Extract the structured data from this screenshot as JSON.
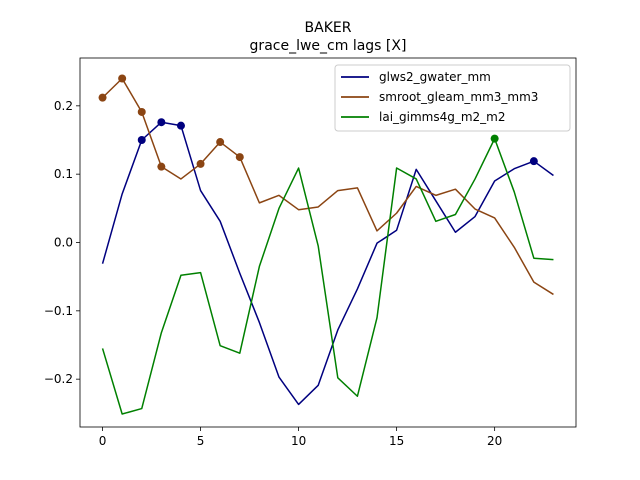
{
  "chart_data": {
    "type": "line",
    "title": "BAKER",
    "subtitle": "grace_lwe_cm lags [X]",
    "xlabel": "",
    "ylabel": "",
    "xlim": [
      -1.15,
      24.15
    ],
    "ylim": [
      -0.27,
      0.27
    ],
    "xticks": [
      0,
      5,
      10,
      15,
      20
    ],
    "yticks": [
      -0.2,
      -0.1,
      0.0,
      0.1,
      0.2
    ],
    "ytick_labels": [
      "−0.2",
      "−0.1",
      "0.0",
      "0.1",
      "0.2"
    ],
    "grid": false,
    "legend_position": "top-right",
    "x": [
      0,
      1,
      2,
      3,
      4,
      5,
      6,
      7,
      8,
      9,
      10,
      11,
      12,
      13,
      14,
      15,
      16,
      17,
      18,
      19,
      20,
      21,
      22,
      23
    ],
    "series": [
      {
        "name": "glws2_gwater_mm",
        "color": "#00007f",
        "values": [
          -0.031,
          0.071,
          0.15,
          0.176,
          0.171,
          0.076,
          0.031,
          -0.045,
          -0.117,
          -0.197,
          -0.237,
          -0.209,
          -0.128,
          -0.068,
          -0.001,
          0.018,
          0.107,
          0.061,
          0.015,
          0.038,
          0.09,
          0.108,
          0.119,
          0.098
        ],
        "markers": [
          2,
          3,
          4,
          22
        ]
      },
      {
        "name": "smroot_gleam_mm3_mm3",
        "color": "#8b4513",
        "values": [
          0.212,
          0.24,
          0.191,
          0.111,
          0.093,
          0.115,
          0.147,
          0.125,
          0.058,
          0.069,
          0.048,
          0.052,
          0.076,
          0.08,
          0.017,
          0.043,
          0.082,
          0.069,
          0.078,
          0.049,
          0.036,
          -0.007,
          -0.058,
          -0.076
        ],
        "markers": [
          0,
          1,
          2,
          3,
          5,
          6,
          7
        ]
      },
      {
        "name": "lai_gimms4g_m2_m2",
        "color": "#008000",
        "values": [
          -0.155,
          -0.251,
          -0.243,
          -0.132,
          -0.048,
          -0.044,
          -0.151,
          -0.162,
          -0.035,
          0.05,
          0.109,
          -0.005,
          -0.198,
          -0.225,
          -0.11,
          0.109,
          0.093,
          0.031,
          0.041,
          0.093,
          0.152,
          0.074,
          -0.023,
          -0.025
        ],
        "markers": [
          20
        ]
      }
    ]
  }
}
